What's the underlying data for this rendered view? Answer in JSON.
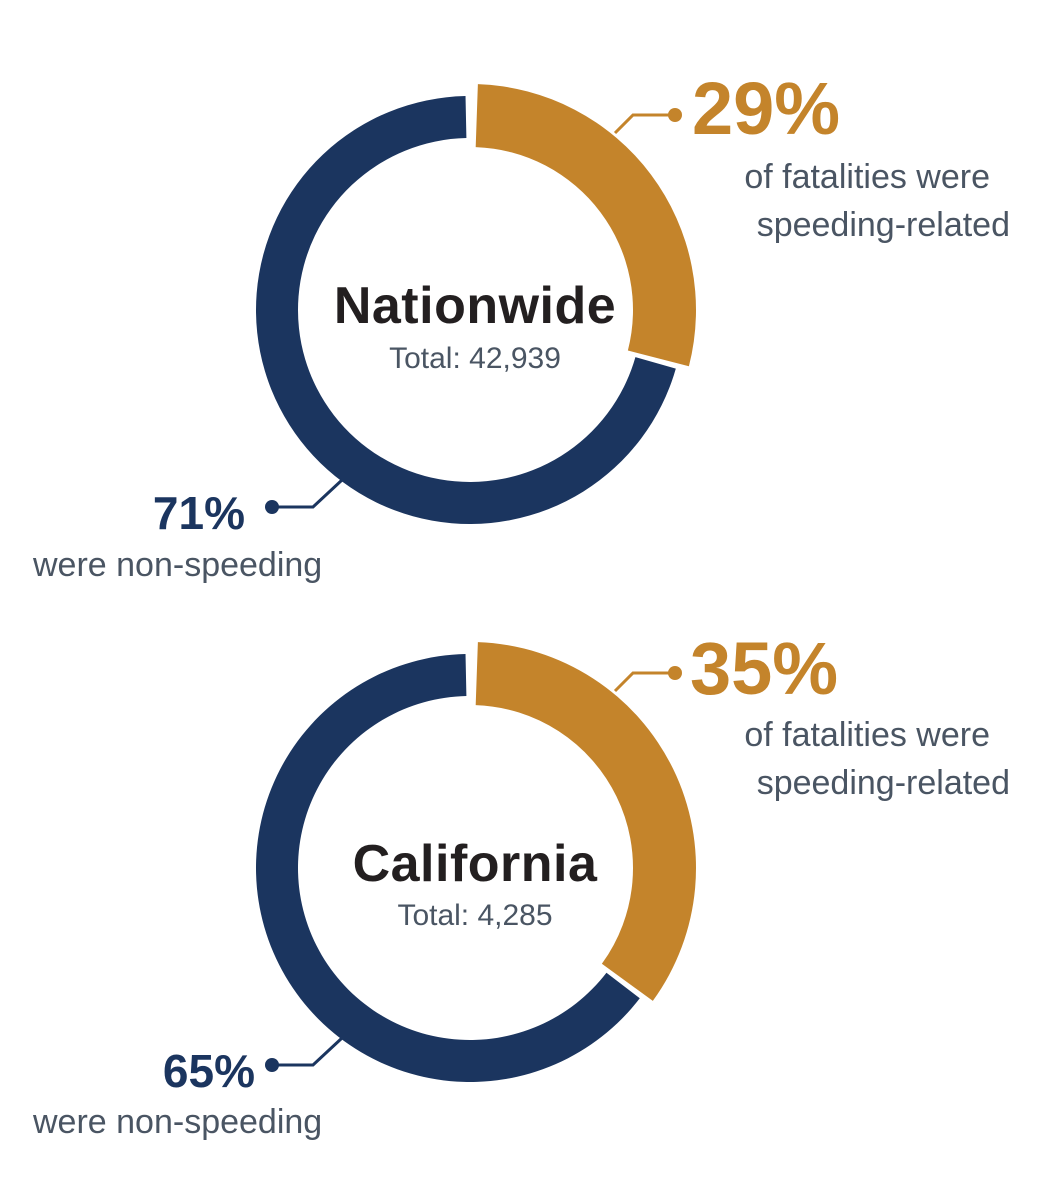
{
  "colors": {
    "speeding": "#c4842b",
    "non_speeding": "#1b355f",
    "text": "#4a5563",
    "title": "#231f20"
  },
  "chart_data": [
    {
      "type": "pie",
      "title": "Nationwide",
      "subtitle": "Total: 42,939",
      "slices": [
        {
          "label": "of fatalities were speeding-related",
          "value": 29,
          "value_label": "29%"
        },
        {
          "label": "were non-speeding",
          "value": 71,
          "value_label": "71%"
        }
      ],
      "desc_lines": [
        "of fatalities were",
        "speeding-related"
      ]
    },
    {
      "type": "pie",
      "title": "California",
      "subtitle": "Total: 4,285",
      "slices": [
        {
          "label": "of fatalities were speeding-related",
          "value": 35,
          "value_label": "35%"
        },
        {
          "label": "were non-speeding",
          "value": 65,
          "value_label": "65%"
        }
      ],
      "desc_lines": [
        "of fatalities were",
        "speeding-related"
      ]
    }
  ]
}
